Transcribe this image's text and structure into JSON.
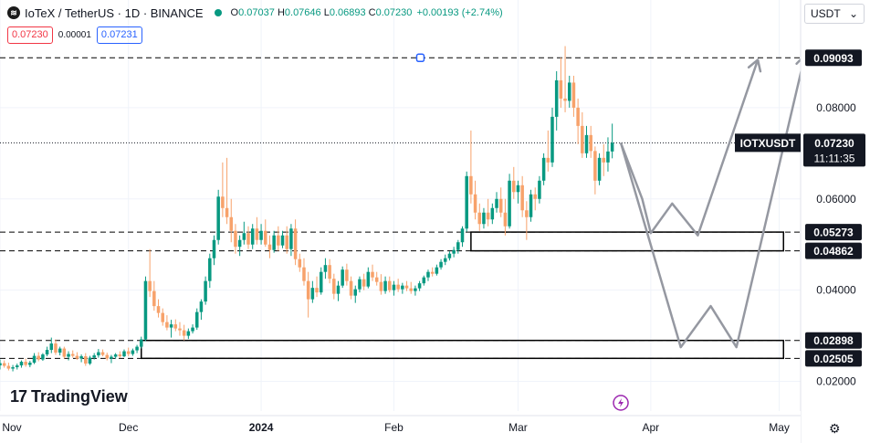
{
  "header": {
    "symbol_icon": "IoTeX-logo-icon",
    "symbol_glyph": "≋",
    "title": "IoTeX / TetherUS · 1D · BINANCE",
    "open_label": "O",
    "open": "0.07037",
    "high_label": "H",
    "high": "0.07646",
    "low_label": "L",
    "low": "0.06893",
    "close_label": "C",
    "close": "0.07230",
    "change": "+0.00193 (+2.74%)",
    "status_color": "#089981"
  },
  "quote": {
    "sell": "0.07230",
    "spread": "0.00001",
    "buy": "0.07231"
  },
  "currency_selector": {
    "value": "USDT",
    "icon": "chevron-down-icon",
    "glyph": "⌄"
  },
  "branding": {
    "logo_mark": "17",
    "name": "TradingView"
  },
  "settings_icon": {
    "icon": "gear-icon",
    "glyph": "⚙"
  },
  "chart_data": {
    "type": "candlestick",
    "symbol_label": "IOTXUSDT",
    "last_price": 0.0723,
    "countdown": "11:11:35",
    "x_ticks": [
      "Nov",
      "Dec",
      "2024",
      "Feb",
      "Mar",
      "Apr",
      "May"
    ],
    "x_tick_dates": [
      "2023-11-01",
      "2023-12-01",
      "2024-01-01",
      "2024-02-01",
      "2024-03-01",
      "2024-04-01",
      "2024-05-01"
    ],
    "y_ticks": [
      0.02,
      0.04,
      0.06,
      0.08
    ],
    "y_tick_labels": [
      "0.02000",
      "0.04000",
      "0.06000",
      "0.08000"
    ],
    "ylim": [
      0.0135,
      0.0976
    ],
    "xlim": [
      "2023-11-01",
      "2024-05-06"
    ],
    "levels": [
      {
        "value": 0.09093,
        "label": "0.09093"
      },
      {
        "value": 0.05273,
        "label": "0.05273"
      },
      {
        "value": 0.04862,
        "label": "0.04862"
      },
      {
        "value": 0.02898,
        "label": "0.02898"
      },
      {
        "value": 0.02505,
        "label": "0.02505"
      }
    ],
    "zones": [
      {
        "from": "2024-02-19",
        "to": "2024-05-02",
        "low": 0.04862,
        "high": 0.05273
      },
      {
        "from": "2023-12-04",
        "to": "2024-05-02",
        "low": 0.02505,
        "high": 0.02898
      }
    ],
    "projection_paths": [
      [
        [
          "2024-03-25",
          0.0723
        ],
        [
          "2024-04-08",
          0.0275
        ],
        [
          "2024-04-15",
          0.0365
        ],
        [
          "2024-04-21",
          0.0275
        ],
        [
          "2024-05-07",
          0.0915
        ]
      ],
      [
        [
          "2024-03-25",
          0.0723
        ],
        [
          "2024-03-30",
          0.06
        ],
        [
          "2024-04-01",
          0.0525
        ],
        [
          "2024-04-06",
          0.059
        ],
        [
          "2024-04-12",
          0.052
        ],
        [
          "2024-04-26",
          0.0905
        ]
      ]
    ],
    "colors": {
      "up": "#089981",
      "down": "#f7a26b",
      "projection": "#9598a1",
      "zone": "#000000",
      "level": "#000000",
      "marker": "#2962ff"
    },
    "candles": [
      [
        "2023-11-01",
        0.0235,
        0.0248,
        0.0226,
        0.024
      ],
      [
        "2023-11-02",
        0.024,
        0.0246,
        0.023,
        0.0234
      ],
      [
        "2023-11-03",
        0.0234,
        0.0241,
        0.0224,
        0.0228
      ],
      [
        "2023-11-04",
        0.0228,
        0.0236,
        0.0222,
        0.0231
      ],
      [
        "2023-11-05",
        0.0231,
        0.0239,
        0.0226,
        0.0235
      ],
      [
        "2023-11-06",
        0.0235,
        0.0246,
        0.023,
        0.0243
      ],
      [
        "2023-11-07",
        0.0243,
        0.025,
        0.0232,
        0.0236
      ],
      [
        "2023-11-08",
        0.0236,
        0.0245,
        0.0231,
        0.0241
      ],
      [
        "2023-11-09",
        0.0241,
        0.0262,
        0.0238,
        0.0256
      ],
      [
        "2023-11-10",
        0.0256,
        0.0264,
        0.0244,
        0.0248
      ],
      [
        "2023-11-11",
        0.0248,
        0.0262,
        0.0245,
        0.0259
      ],
      [
        "2023-11-12",
        0.0259,
        0.0276,
        0.0255,
        0.0269
      ],
      [
        "2023-11-13",
        0.0269,
        0.0296,
        0.0262,
        0.0283
      ],
      [
        "2023-11-14",
        0.0283,
        0.0292,
        0.0258,
        0.0263
      ],
      [
        "2023-11-15",
        0.0263,
        0.0276,
        0.0257,
        0.0272
      ],
      [
        "2023-11-16",
        0.0272,
        0.0276,
        0.025,
        0.0254
      ],
      [
        "2023-11-17",
        0.0254,
        0.0266,
        0.0246,
        0.026
      ],
      [
        "2023-11-18",
        0.026,
        0.0268,
        0.0252,
        0.0256
      ],
      [
        "2023-11-19",
        0.0256,
        0.0264,
        0.0247,
        0.025
      ],
      [
        "2023-11-20",
        0.025,
        0.0259,
        0.0242,
        0.0255
      ],
      [
        "2023-11-21",
        0.0255,
        0.0262,
        0.0234,
        0.0239
      ],
      [
        "2023-11-22",
        0.0239,
        0.0256,
        0.0236,
        0.0252
      ],
      [
        "2023-11-23",
        0.0252,
        0.0262,
        0.0248,
        0.0257
      ],
      [
        "2023-11-24",
        0.0257,
        0.0271,
        0.0252,
        0.0264
      ],
      [
        "2023-11-25",
        0.0264,
        0.027,
        0.0255,
        0.0258
      ],
      [
        "2023-11-26",
        0.0258,
        0.0263,
        0.0246,
        0.025
      ],
      [
        "2023-11-27",
        0.025,
        0.0258,
        0.024,
        0.0254
      ],
      [
        "2023-11-28",
        0.0254,
        0.0262,
        0.0249,
        0.0259
      ],
      [
        "2023-11-29",
        0.0259,
        0.0266,
        0.0251,
        0.0255
      ],
      [
        "2023-11-30",
        0.0255,
        0.027,
        0.0253,
        0.0266
      ],
      [
        "2023-12-01",
        0.0266,
        0.0274,
        0.0255,
        0.026
      ],
      [
        "2023-12-02",
        0.026,
        0.0272,
        0.0256,
        0.0268
      ],
      [
        "2023-12-03",
        0.0268,
        0.028,
        0.0262,
        0.0276
      ],
      [
        "2023-12-04",
        0.0276,
        0.0298,
        0.0272,
        0.0292
      ],
      [
        "2023-12-05",
        0.0292,
        0.043,
        0.0288,
        0.042
      ],
      [
        "2023-12-06",
        0.042,
        0.049,
        0.0385,
        0.0398
      ],
      [
        "2023-12-07",
        0.0398,
        0.042,
        0.0355,
        0.0365
      ],
      [
        "2023-12-08",
        0.0365,
        0.038,
        0.034,
        0.035
      ],
      [
        "2023-12-09",
        0.035,
        0.036,
        0.0322,
        0.033
      ],
      [
        "2023-12-10",
        0.033,
        0.0345,
        0.0312,
        0.0318
      ],
      [
        "2023-12-11",
        0.0318,
        0.0335,
        0.0296,
        0.0325
      ],
      [
        "2023-12-12",
        0.0325,
        0.0336,
        0.031,
        0.0316
      ],
      [
        "2023-12-13",
        0.0316,
        0.033,
        0.03,
        0.0312
      ],
      [
        "2023-12-14",
        0.0312,
        0.0324,
        0.029,
        0.03
      ],
      [
        "2023-12-15",
        0.03,
        0.0316,
        0.0293,
        0.031
      ],
      [
        "2023-12-16",
        0.031,
        0.0325,
        0.0305,
        0.0318
      ],
      [
        "2023-12-17",
        0.0318,
        0.036,
        0.0313,
        0.0352
      ],
      [
        "2023-12-18",
        0.0352,
        0.038,
        0.0335,
        0.0375
      ],
      [
        "2023-12-19",
        0.0375,
        0.043,
        0.0368,
        0.042
      ],
      [
        "2023-12-20",
        0.042,
        0.048,
        0.0405,
        0.047
      ],
      [
        "2023-12-21",
        0.047,
        0.052,
        0.0455,
        0.051
      ],
      [
        "2023-12-22",
        0.051,
        0.062,
        0.05,
        0.0605
      ],
      [
        "2023-12-23",
        0.0605,
        0.068,
        0.056,
        0.058
      ],
      [
        "2023-12-24",
        0.058,
        0.069,
        0.0545,
        0.056
      ],
      [
        "2023-12-25",
        0.056,
        0.06,
        0.0505,
        0.053
      ],
      [
        "2023-12-26",
        0.053,
        0.0545,
        0.048,
        0.0495
      ],
      [
        "2023-12-27",
        0.0495,
        0.052,
        0.0475,
        0.051
      ],
      [
        "2023-12-28",
        0.051,
        0.055,
        0.05,
        0.0525
      ],
      [
        "2023-12-29",
        0.0525,
        0.054,
        0.049,
        0.05
      ],
      [
        "2023-12-30",
        0.05,
        0.0545,
        0.049,
        0.0535
      ],
      [
        "2023-12-31",
        0.0535,
        0.056,
        0.05,
        0.051
      ],
      [
        "2024-01-01",
        0.051,
        0.0545,
        0.05,
        0.053
      ],
      [
        "2024-01-02",
        0.053,
        0.0555,
        0.0495,
        0.05
      ],
      [
        "2024-01-03",
        0.05,
        0.052,
        0.047,
        0.0488
      ],
      [
        "2024-01-04",
        0.0488,
        0.053,
        0.0482,
        0.052
      ],
      [
        "2024-01-05",
        0.052,
        0.054,
        0.0486,
        0.0498
      ],
      [
        "2024-01-06",
        0.0498,
        0.053,
        0.0492,
        0.052
      ],
      [
        "2024-01-07",
        0.052,
        0.054,
        0.048,
        0.049
      ],
      [
        "2024-01-08",
        0.049,
        0.0545,
        0.0475,
        0.0535
      ],
      [
        "2024-01-09",
        0.0535,
        0.0555,
        0.0455,
        0.0468
      ],
      [
        "2024-01-10",
        0.0468,
        0.048,
        0.044,
        0.045
      ],
      [
        "2024-01-11",
        0.045,
        0.047,
        0.041,
        0.042
      ],
      [
        "2024-01-12",
        0.042,
        0.044,
        0.034,
        0.038
      ],
      [
        "2024-01-13",
        0.038,
        0.042,
        0.0372,
        0.0405
      ],
      [
        "2024-01-14",
        0.0405,
        0.043,
        0.0385,
        0.0395
      ],
      [
        "2024-01-15",
        0.0395,
        0.045,
        0.039,
        0.044
      ],
      [
        "2024-01-16",
        0.044,
        0.047,
        0.0425,
        0.0455
      ],
      [
        "2024-01-17",
        0.0455,
        0.0468,
        0.0415,
        0.0425
      ],
      [
        "2024-01-18",
        0.0425,
        0.0436,
        0.038,
        0.0392
      ],
      [
        "2024-01-19",
        0.0392,
        0.042,
        0.0376,
        0.041
      ],
      [
        "2024-01-20",
        0.041,
        0.0452,
        0.0405,
        0.0445
      ],
      [
        "2024-01-21",
        0.0445,
        0.0458,
        0.041,
        0.042
      ],
      [
        "2024-01-22",
        0.042,
        0.043,
        0.038,
        0.0388
      ],
      [
        "2024-01-23",
        0.0388,
        0.041,
        0.0372,
        0.0402
      ],
      [
        "2024-01-24",
        0.0402,
        0.043,
        0.0395,
        0.0424
      ],
      [
        "2024-01-25",
        0.0424,
        0.0436,
        0.04,
        0.0408
      ],
      [
        "2024-01-26",
        0.0408,
        0.045,
        0.0404,
        0.044
      ],
      [
        "2024-01-27",
        0.044,
        0.0456,
        0.042,
        0.0428
      ],
      [
        "2024-01-28",
        0.0428,
        0.044,
        0.041,
        0.0418
      ],
      [
        "2024-01-29",
        0.0418,
        0.0435,
        0.039,
        0.0398
      ],
      [
        "2024-01-30",
        0.0398,
        0.043,
        0.0392,
        0.042
      ],
      [
        "2024-01-31",
        0.042,
        0.043,
        0.0395,
        0.04
      ],
      [
        "2024-02-01",
        0.04,
        0.042,
        0.0388,
        0.0412
      ],
      [
        "2024-02-02",
        0.0412,
        0.0425,
        0.0396,
        0.0402
      ],
      [
        "2024-02-03",
        0.0402,
        0.0416,
        0.0392,
        0.041
      ],
      [
        "2024-02-04",
        0.041,
        0.042,
        0.0398,
        0.0404
      ],
      [
        "2024-02-05",
        0.0404,
        0.0418,
        0.0392,
        0.0398
      ],
      [
        "2024-02-06",
        0.0398,
        0.041,
        0.0388,
        0.0404
      ],
      [
        "2024-02-07",
        0.0404,
        0.042,
        0.0398,
        0.0415
      ],
      [
        "2024-02-08",
        0.0415,
        0.0432,
        0.041,
        0.0428
      ],
      [
        "2024-02-09",
        0.0428,
        0.0445,
        0.042,
        0.044
      ],
      [
        "2024-02-10",
        0.044,
        0.045,
        0.043,
        0.0436
      ],
      [
        "2024-02-11",
        0.0436,
        0.0456,
        0.0432,
        0.045
      ],
      [
        "2024-02-12",
        0.045,
        0.0468,
        0.0445,
        0.0462
      ],
      [
        "2024-02-13",
        0.0462,
        0.0478,
        0.0455,
        0.047
      ],
      [
        "2024-02-14",
        0.047,
        0.0485,
        0.0465,
        0.048
      ],
      [
        "2024-02-15",
        0.048,
        0.0495,
        0.0472,
        0.0488
      ],
      [
        "2024-02-16",
        0.0488,
        0.051,
        0.048,
        0.0505
      ],
      [
        "2024-02-17",
        0.0505,
        0.054,
        0.0495,
        0.0535
      ],
      [
        "2024-02-18",
        0.0535,
        0.066,
        0.0528,
        0.065
      ],
      [
        "2024-02-19",
        0.065,
        0.075,
        0.059,
        0.061
      ],
      [
        "2024-02-20",
        0.061,
        0.064,
        0.0555,
        0.057
      ],
      [
        "2024-02-21",
        0.057,
        0.059,
        0.053,
        0.0545
      ],
      [
        "2024-02-22",
        0.0545,
        0.058,
        0.0535,
        0.057
      ],
      [
        "2024-02-23",
        0.057,
        0.06,
        0.054,
        0.0555
      ],
      [
        "2024-02-24",
        0.0555,
        0.059,
        0.0545,
        0.058
      ],
      [
        "2024-02-25",
        0.058,
        0.0615,
        0.057,
        0.06
      ],
      [
        "2024-02-26",
        0.06,
        0.0625,
        0.056,
        0.057
      ],
      [
        "2024-02-27",
        0.057,
        0.06,
        0.052,
        0.054
      ],
      [
        "2024-02-28",
        0.054,
        0.0655,
        0.0535,
        0.064
      ],
      [
        "2024-02-29",
        0.064,
        0.067,
        0.06,
        0.0615
      ],
      [
        "2024-03-01",
        0.0615,
        0.064,
        0.059,
        0.063
      ],
      [
        "2024-03-02",
        0.063,
        0.065,
        0.056,
        0.0575
      ],
      [
        "2024-03-03",
        0.0575,
        0.0595,
        0.051,
        0.056
      ],
      [
        "2024-03-04",
        0.056,
        0.062,
        0.055,
        0.061
      ],
      [
        "2024-03-05",
        0.061,
        0.0625,
        0.0575,
        0.06
      ],
      [
        "2024-03-06",
        0.06,
        0.065,
        0.059,
        0.064
      ],
      [
        "2024-03-07",
        0.064,
        0.07,
        0.063,
        0.069
      ],
      [
        "2024-03-08",
        0.069,
        0.075,
        0.066,
        0.068
      ],
      [
        "2024-03-09",
        0.068,
        0.08,
        0.067,
        0.078
      ],
      [
        "2024-03-10",
        0.078,
        0.088,
        0.075,
        0.086
      ],
      [
        "2024-03-11",
        0.086,
        0.091,
        0.08,
        0.082
      ],
      [
        "2024-03-12",
        0.082,
        0.0935,
        0.079,
        0.0815
      ],
      [
        "2024-03-13",
        0.0815,
        0.087,
        0.08,
        0.0855
      ],
      [
        "2024-03-14",
        0.0855,
        0.087,
        0.078,
        0.08
      ],
      [
        "2024-03-15",
        0.08,
        0.082,
        0.072,
        0.076
      ],
      [
        "2024-03-16",
        0.076,
        0.079,
        0.069,
        0.07
      ],
      [
        "2024-03-17",
        0.07,
        0.076,
        0.069,
        0.074
      ],
      [
        "2024-03-18",
        0.074,
        0.076,
        0.069,
        0.0705
      ],
      [
        "2024-03-19",
        0.0705,
        0.0715,
        0.061,
        0.064
      ],
      [
        "2024-03-20",
        0.064,
        0.07,
        0.063,
        0.069
      ],
      [
        "2024-03-21",
        0.069,
        0.072,
        0.065,
        0.068
      ],
      [
        "2024-03-22",
        0.068,
        0.0735,
        0.066,
        0.0704
      ],
      [
        "2024-03-23",
        0.0704,
        0.0765,
        0.0689,
        0.0723
      ]
    ]
  }
}
